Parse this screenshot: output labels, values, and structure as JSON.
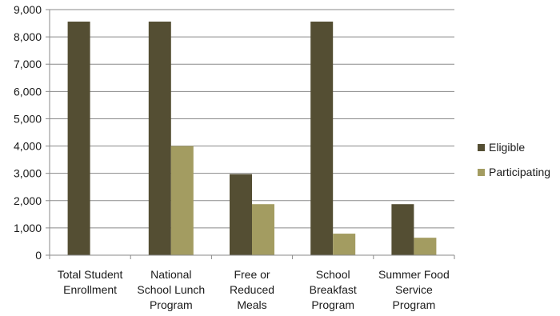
{
  "chart_data": {
    "type": "bar",
    "categories": [
      [
        "Total Student",
        "Enrollment"
      ],
      [
        "National",
        "School Lunch",
        "Program"
      ],
      [
        "Free or",
        "Reduced",
        "Meals"
      ],
      [
        "School",
        "Breakfast",
        "Program"
      ],
      [
        "Summer Food",
        "Service",
        "Program"
      ]
    ],
    "series": [
      {
        "name": "Eligible",
        "color": "#544e33",
        "values": [
          8560,
          8560,
          2970,
          8560,
          1870
        ]
      },
      {
        "name": "Participating",
        "color": "#a39c61",
        "values": [
          null,
          4000,
          1870,
          790,
          640
        ]
      }
    ],
    "ylim": [
      0,
      9000
    ],
    "yticks": [
      0,
      1000,
      2000,
      3000,
      4000,
      5000,
      6000,
      7000,
      8000,
      9000
    ],
    "ytick_labels": [
      "0",
      "1,000",
      "2,000",
      "3,000",
      "4,000",
      "5,000",
      "6,000",
      "7,000",
      "8,000",
      "9,000"
    ],
    "grid": true,
    "legend_position": "right"
  }
}
